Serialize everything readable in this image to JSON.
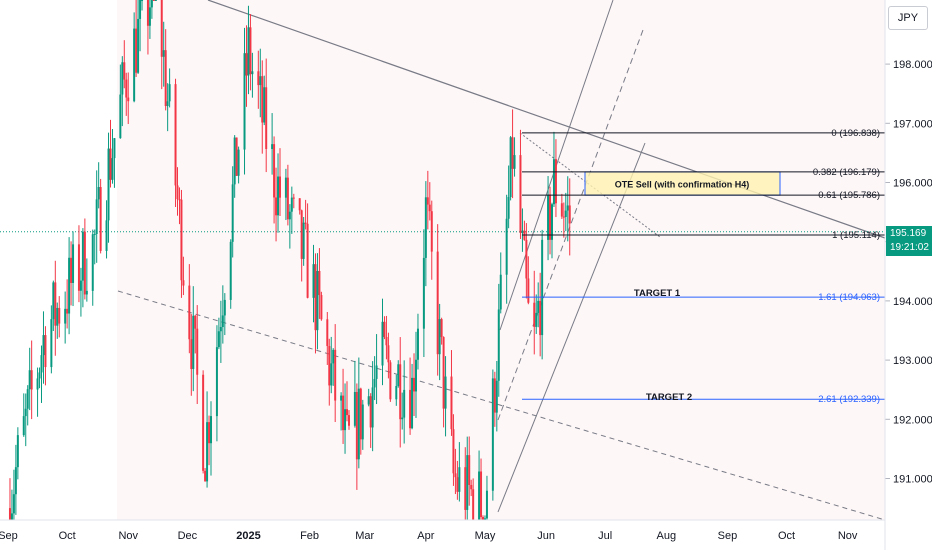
{
  "symbol": {
    "currency": "JPY"
  },
  "last_price": {
    "price": "195.169",
    "countdown": "19:21:02"
  },
  "chart_data": {
    "type": "candlestick",
    "title": "",
    "xlabel": "",
    "ylabel": "",
    "x_tick_labels": [
      "Sep",
      "Oct",
      "Nov",
      "Dec",
      "2025",
      "Feb",
      "Mar",
      "Apr",
      "May",
      "Jun",
      "Jul",
      "Aug",
      "Sep",
      "Oct",
      "Nov"
    ],
    "y_tick_labels": [
      "191.000",
      "192.000",
      "193.000",
      "194.000",
      "195.000",
      "196.000",
      "197.000",
      "198.000"
    ],
    "y_ticks": [
      191,
      192,
      193,
      194,
      195,
      196,
      197,
      198
    ],
    "ylim": [
      190.3,
      199.4
    ],
    "up_color": "#089981",
    "down_color": "#f23645",
    "key_points": [
      {
        "date": "2024-09-01",
        "close": 190.5
      },
      {
        "date": "2024-09-20",
        "close": 193.5
      },
      {
        "date": "2024-10-15",
        "close": 195.0
      },
      {
        "date": "2024-11-01",
        "close": 198.0
      },
      {
        "date": "2024-11-15",
        "close": 199.4
      },
      {
        "date": "2024-12-01",
        "close": 194.0
      },
      {
        "date": "2024-12-10",
        "close": 191.5
      },
      {
        "date": "2025-01-01",
        "close": 198.2
      },
      {
        "date": "2025-01-15",
        "close": 196.0
      },
      {
        "date": "2025-02-01",
        "close": 194.5
      },
      {
        "date": "2025-02-20",
        "close": 191.5
      },
      {
        "date": "2025-03-10",
        "close": 193.0
      },
      {
        "date": "2025-03-25",
        "close": 192.5
      },
      {
        "date": "2025-04-01",
        "close": 195.5
      },
      {
        "date": "2025-04-15",
        "close": 191.0
      },
      {
        "date": "2025-05-01",
        "close": 190.5
      },
      {
        "date": "2025-05-15",
        "close": 196.5
      },
      {
        "date": "2025-05-25",
        "close": 193.0
      },
      {
        "date": "2025-06-05",
        "close": 196.0
      },
      {
        "date": "2025-06-15",
        "close": 195.2
      }
    ],
    "fib_levels": [
      {
        "ratio": "0",
        "price": 196.838,
        "label": "0 (196.838)",
        "color": "#131722"
      },
      {
        "ratio": "0.382",
        "price": 196.179,
        "label": "0.382 (196.179)",
        "color": "#131722"
      },
      {
        "ratio": "0.61",
        "price": 195.786,
        "label": "0.61 (195.786)",
        "color": "#131722"
      },
      {
        "ratio": "1",
        "price": 195.114,
        "label": "1 (195.114)",
        "color": "#131722"
      },
      {
        "ratio": "1.61",
        "price": 194.063,
        "label": "1.61 (194.063)",
        "color": "#2962ff"
      },
      {
        "ratio": "2.61",
        "price": 192.339,
        "label": "2.61 (192.339)",
        "color": "#2962ff"
      }
    ],
    "annotations": [
      {
        "text": "OTE Sell (with confirmation H4)"
      },
      {
        "text": "TARGET 1"
      },
      {
        "text": "TARGET 2"
      }
    ],
    "current_price": 195.169
  }
}
